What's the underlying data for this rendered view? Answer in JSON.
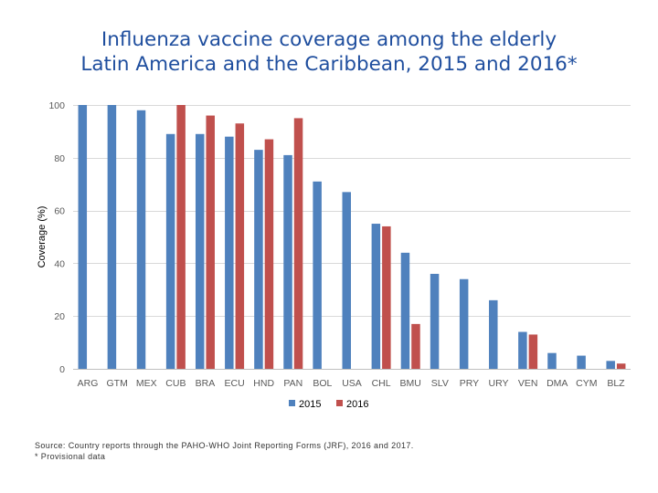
{
  "title_line1": "Influenza vaccine coverage among the elderly",
  "title_line2": "Latin America and the Caribbean, 2015 and 2016*",
  "chart_data": {
    "type": "bar",
    "title": "Influenza vaccine coverage among the elderly Latin America and the Caribbean, 2015 and 2016*",
    "xlabel": "",
    "ylabel": "Coverage (%)",
    "ylim": [
      0,
      100
    ],
    "yticks": [
      0,
      20,
      40,
      60,
      80,
      100
    ],
    "grid": true,
    "legend_position": "bottom",
    "categories": [
      "ARG",
      "GTM",
      "MEX",
      "CUB",
      "BRA",
      "ECU",
      "HND",
      "PAN",
      "BOL",
      "USA",
      "CHL",
      "BMU",
      "SLV",
      "PRY",
      "URY",
      "VEN",
      "DMA",
      "CYM",
      "BLZ"
    ],
    "series": [
      {
        "name": "2015",
        "color": "#4f81bd",
        "values": [
          100,
          100,
          98,
          89,
          89,
          88,
          83,
          81,
          71,
          67,
          55,
          44,
          36,
          34,
          26,
          14,
          6,
          5,
          3
        ]
      },
      {
        "name": "2016",
        "color": "#c0504d",
        "values": [
          null,
          null,
          null,
          100,
          96,
          93,
          87,
          95,
          null,
          null,
          54,
          17,
          null,
          null,
          null,
          13,
          null,
          null,
          2
        ]
      }
    ]
  },
  "source_line1": "Source: Country reports through the PAHO-WHO Joint Reporting Forms (JRF), 2016 and 2017.",
  "source_line2": "* Provisional data"
}
